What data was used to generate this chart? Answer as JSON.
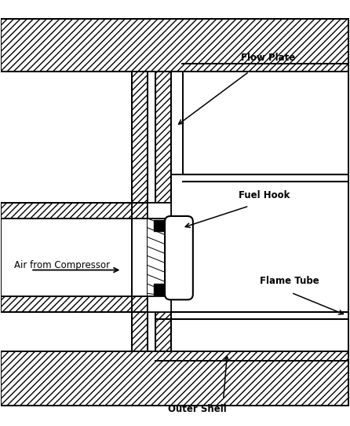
{
  "fig_width": 4.46,
  "fig_height": 5.42,
  "dpi": 100,
  "bg_color": "#ffffff",
  "line_color": "#000000",
  "labels": {
    "flow_plate": "Flow Plate",
    "fuel_hook": "Fuel Hook",
    "flame_tube": "Flame Tube",
    "outer_shell": "Outer Shell",
    "air_from_compressor": "Air from Compressor"
  },
  "label_fontsize": 8.5,
  "lw": 1.4
}
